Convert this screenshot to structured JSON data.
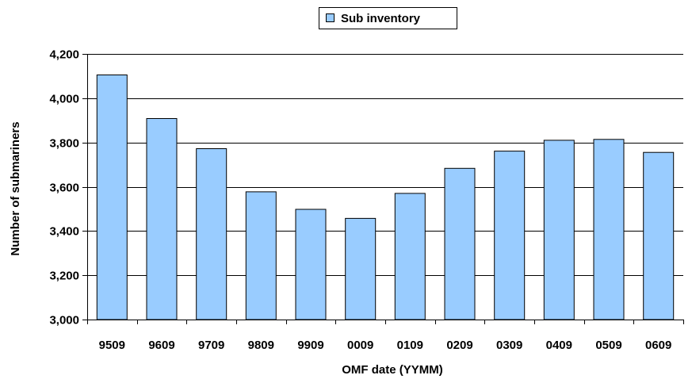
{
  "chart_data": {
    "type": "bar",
    "categories": [
      "9509",
      "9609",
      "9709",
      "9809",
      "9909",
      "0009",
      "0109",
      "0209",
      "0309",
      "0409",
      "0509",
      "0609"
    ],
    "series": [
      {
        "name": "Sub inventory",
        "values": [
          4105,
          3908,
          3772,
          3577,
          3498,
          3457,
          3570,
          3683,
          3761,
          3810,
          3814,
          3755
        ],
        "color": "#99ccff"
      }
    ],
    "xlabel": "OMF date (YYMM)",
    "ylabel": "Number of submariners",
    "ylim": [
      3000,
      4200
    ],
    "yticks": [
      3000,
      3200,
      3400,
      3600,
      3800,
      4000,
      4200
    ],
    "ytick_labels": [
      "3,000",
      "3,200",
      "3,400",
      "3,600",
      "3,800",
      "4,000",
      "4,200"
    ],
    "grid": true,
    "legend_position": "top-center"
  }
}
